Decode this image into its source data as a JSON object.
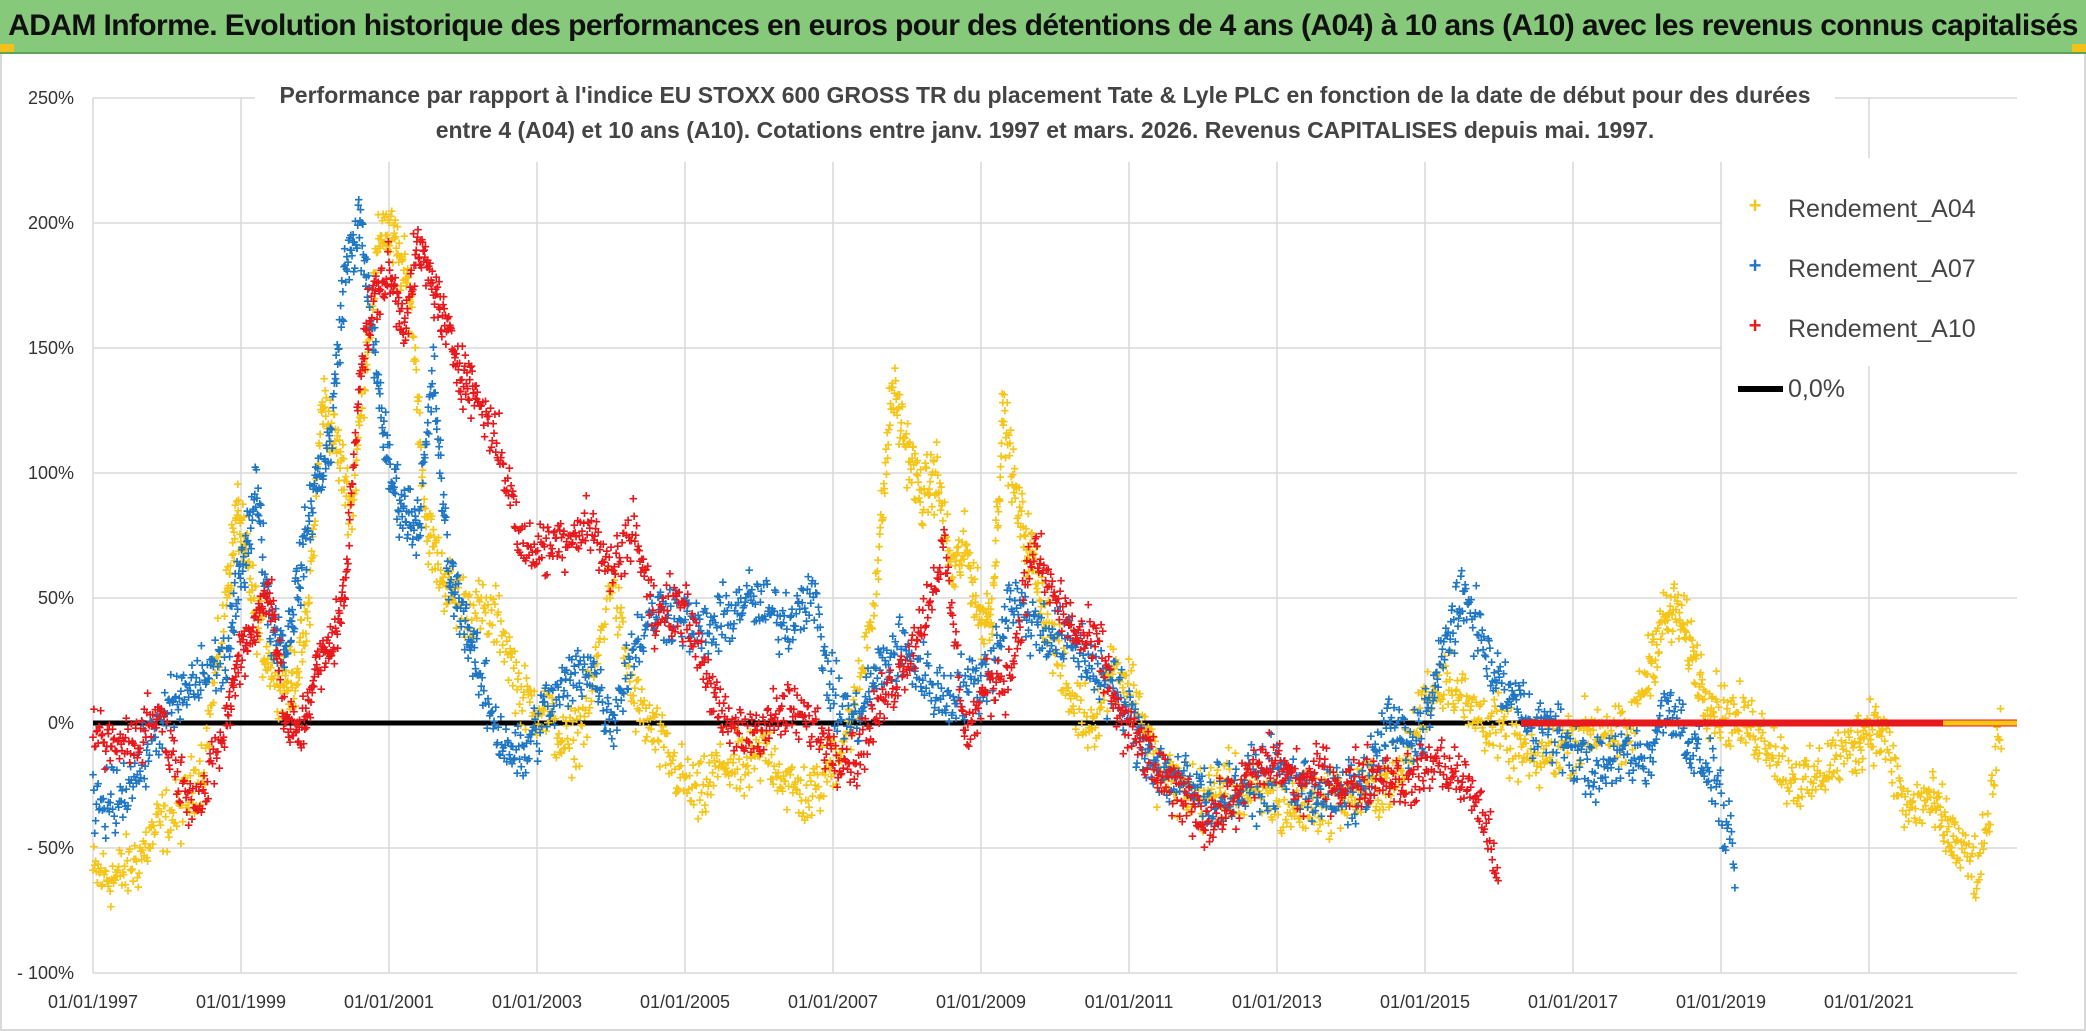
{
  "banner": {
    "title": "ADAM Informe. Evolution historique des performances en euros pour des détentions de 4 ans (A04) à 10 ans (A10) avec les revenus connus capitalisés"
  },
  "chart_data": {
    "type": "scatter",
    "title_line1": "Performance par rapport à l'indice EU STOXX 600 GROSS TR  du placement Tate & Lyle PLC en fonction de la date de début pour des durées",
    "title_line2": "entre 4 (A04) et 10 ans (A10). Cotations entre janv. 1997 et mars. 2026. Revenus CAPITALISES depuis mai. 1997.",
    "xlabel": "",
    "ylabel": "",
    "xlim": [
      1997.0,
      2023.0
    ],
    "ylim": [
      -100,
      250
    ],
    "x_ticks": [
      1997,
      1999,
      2001,
      2003,
      2005,
      2007,
      2009,
      2011,
      2013,
      2015,
      2017,
      2019,
      2021
    ],
    "x_tick_labels": [
      "01/01/1997",
      "01/01/1999",
      "01/01/2001",
      "01/01/2003",
      "01/01/2005",
      "01/01/2007",
      "01/01/2009",
      "01/01/2011",
      "01/01/2013",
      "01/01/2015",
      "01/01/2017",
      "01/01/2019",
      "01/01/2021"
    ],
    "y_ticks": [
      -100,
      -50,
      0,
      50,
      100,
      150,
      200,
      250
    ],
    "y_tick_labels": [
      "- 100%",
      "- 50%",
      "0%",
      "50%",
      "100%",
      "150%",
      "200%",
      "250%"
    ],
    "grid": true,
    "legend_position": "top-right",
    "series": [
      {
        "name": "Rendement_A04",
        "color": "#f5c518",
        "x": [
          1997.0,
          1997.3,
          1997.6,
          1997.9,
          1998.2,
          1998.5,
          1998.8,
          1998.95,
          1999.1,
          1999.3,
          1999.5,
          1999.7,
          1999.9,
          2000.1,
          2000.3,
          2000.5,
          2000.7,
          2000.9,
          2001.1,
          2001.3,
          2001.5,
          2001.7,
          2001.9,
          2002.2,
          2002.5,
          2002.8,
          2003.1,
          2003.4,
          2003.7,
          2004.0,
          2004.3,
          2004.6,
          2004.9,
          2005.2,
          2005.5,
          2005.8,
          2006.1,
          2006.4,
          2006.7,
          2007.0,
          2007.3,
          2007.6,
          2007.8,
          2008.0,
          2008.2,
          2008.4,
          2008.6,
          2008.8,
          2009.0,
          2009.15,
          2009.3,
          2009.5,
          2009.7,
          2009.9,
          2010.2,
          2010.5,
          2010.8,
          2011.1,
          2011.4,
          2011.7,
          2012.0,
          2012.3,
          2012.6,
          2012.9,
          2013.2,
          2013.5,
          2013.8,
          2014.1,
          2014.4,
          2014.7,
          2015.0,
          2015.3,
          2015.6,
          2015.9,
          2016.2,
          2016.5,
          2016.8,
          2017.1,
          2017.4,
          2017.7,
          2018.0,
          2018.2,
          2018.4,
          2018.6,
          2018.8,
          2019.0,
          2019.3,
          2019.6,
          2019.9,
          2020.2,
          2020.5,
          2020.8,
          2021.0,
          2021.2,
          2021.5,
          2021.8,
          2022.0,
          2022.2,
          2022.5,
          2022.8
        ],
        "y": [
          -60,
          -62,
          -55,
          -40,
          -35,
          -15,
          50,
          85,
          60,
          30,
          20,
          15,
          40,
          130,
          110,
          85,
          150,
          200,
          190,
          170,
          80,
          60,
          50,
          45,
          40,
          10,
          5,
          -10,
          5,
          60,
          10,
          -5,
          -20,
          -30,
          -15,
          -20,
          -10,
          -25,
          -30,
          -15,
          5,
          60,
          135,
          110,
          90,
          100,
          60,
          70,
          40,
          45,
          125,
          85,
          65,
          40,
          10,
          0,
          25,
          10,
          -20,
          -25,
          -30,
          -25,
          -28,
          -30,
          -35,
          -32,
          -30,
          -28,
          -25,
          -20,
          10,
          20,
          5,
          0,
          -10,
          -15,
          -10,
          -5,
          0,
          -10,
          20,
          40,
          45,
          30,
          10,
          5,
          0,
          -5,
          -20,
          -25,
          -15,
          -10,
          0,
          -5,
          -35,
          -30,
          -40,
          -50,
          -60,
          0
        ],
        "scatter": 9
      },
      {
        "name": "Rendement_A07",
        "color": "#1f77c4",
        "x": [
          1997.0,
          1997.3,
          1997.6,
          1997.9,
          1998.2,
          1998.5,
          1998.8,
          1999.0,
          1999.2,
          1999.4,
          1999.6,
          1999.8,
          2000.0,
          2000.2,
          2000.4,
          2000.6,
          2000.8,
          2001.0,
          2001.2,
          2001.4,
          2001.6,
          2001.8,
          2002.0,
          2002.2,
          2002.5,
          2002.8,
          2003.1,
          2003.4,
          2003.7,
          2004.0,
          2004.3,
          2004.6,
          2004.9,
          2005.2,
          2005.5,
          2005.8,
          2006.1,
          2006.4,
          2006.7,
          2007.0,
          2007.3,
          2007.6,
          2007.9,
          2008.2,
          2008.5,
          2008.8,
          2009.1,
          2009.4,
          2009.7,
          2010.0,
          2010.3,
          2010.6,
          2010.9,
          2011.2,
          2011.5,
          2011.8,
          2012.1,
          2012.4,
          2012.7,
          2013.0,
          2013.3,
          2013.6,
          2013.9,
          2014.2,
          2014.5,
          2014.8,
          2015.1,
          2015.35,
          2015.6,
          2015.9,
          2016.2,
          2016.5,
          2016.8,
          2017.1,
          2017.4,
          2017.7,
          2018.0,
          2018.3,
          2018.6,
          2018.9,
          2019.2
        ],
        "y": [
          -35,
          -30,
          -20,
          0,
          10,
          20,
          25,
          60,
          95,
          40,
          30,
          60,
          95,
          110,
          180,
          200,
          150,
          100,
          85,
          80,
          140,
          60,
          45,
          20,
          -5,
          -15,
          5,
          15,
          25,
          0,
          30,
          45,
          45,
          35,
          40,
          50,
          45,
          40,
          55,
          10,
          0,
          20,
          30,
          20,
          10,
          15,
          20,
          50,
          40,
          35,
          30,
          20,
          10,
          -10,
          -20,
          -25,
          -30,
          -28,
          -25,
          -20,
          -25,
          -28,
          -30,
          -25,
          0,
          -10,
          10,
          40,
          50,
          20,
          10,
          0,
          -5,
          -15,
          -20,
          -10,
          -15,
          10,
          -10,
          -20,
          -60
        ],
        "scatter": 9
      },
      {
        "name": "Rendement_A10",
        "color": "#e8191c",
        "x": [
          1997.0,
          1997.3,
          1997.6,
          1997.9,
          1998.2,
          1998.5,
          1998.8,
          1999.0,
          1999.2,
          1999.4,
          1999.6,
          1999.8,
          2000.0,
          2000.2,
          2000.4,
          2000.6,
          2000.8,
          2001.0,
          2001.2,
          2001.4,
          2001.6,
          2001.8,
          2002.0,
          2002.2,
          2002.5,
          2002.8,
          2003.1,
          2003.4,
          2003.7,
          2004.0,
          2004.3,
          2004.6,
          2004.9,
          2005.2,
          2005.5,
          2005.8,
          2006.1,
          2006.4,
          2006.7,
          2007.0,
          2007.3,
          2007.6,
          2007.9,
          2008.2,
          2008.5,
          2008.8,
          2009.1,
          2009.4,
          2009.7,
          2010.0,
          2010.3,
          2010.6,
          2010.9,
          2011.2,
          2011.5,
          2011.8,
          2012.1,
          2012.4,
          2012.7,
          2013.0,
          2013.3,
          2013.6,
          2013.9,
          2014.2,
          2014.5,
          2014.8,
          2015.1,
          2015.4,
          2015.7,
          2016.0
        ],
        "y": [
          -5,
          -10,
          -5,
          5,
          -25,
          -30,
          0,
          30,
          40,
          55,
          0,
          -5,
          20,
          30,
          50,
          140,
          170,
          180,
          160,
          190,
          175,
          155,
          140,
          130,
          110,
          70,
          70,
          75,
          80,
          60,
          80,
          40,
          50,
          30,
          0,
          -5,
          0,
          5,
          0,
          -10,
          -15,
          5,
          20,
          40,
          70,
          -5,
          15,
          20,
          70,
          50,
          35,
          30,
          0,
          -10,
          -25,
          -30,
          -40,
          -30,
          -20,
          -15,
          -25,
          -20,
          -25,
          -22,
          -20,
          -25,
          -15,
          -20,
          -30,
          -60
        ],
        "scatter": 8
      }
    ],
    "reference_line": {
      "name": "0,0%",
      "y": 0,
      "color": "#000000"
    },
    "flat_segment_A10": {
      "x_start": 2016.3,
      "x_end": 2023.0,
      "y": 0
    },
    "flat_segment_A04": {
      "x_start": 2022.0,
      "x_end": 2023.0,
      "y": 0
    }
  }
}
